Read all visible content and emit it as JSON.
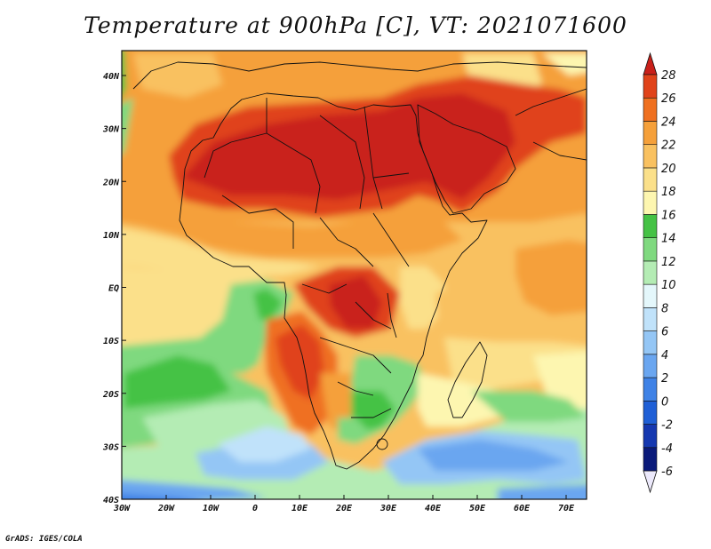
{
  "title": "Temperature at 900hPa [C], VT: 2021071600",
  "footer": "GrADS: IGES/COLA",
  "map": {
    "lon_range": [
      -30,
      75
    ],
    "lat_range": [
      -40,
      45
    ],
    "lon_ticks": [
      "30W",
      "20W",
      "10W",
      "0",
      "10E",
      "20E",
      "30E",
      "40E",
      "50E",
      "60E",
      "70E"
    ],
    "lat_ticks": [
      "40S",
      "30S",
      "20S",
      "10S",
      "EQ",
      "10N",
      "20N",
      "30N",
      "40N"
    ]
  },
  "colorbar": {
    "labels": [
      "-6",
      "-4",
      "-2",
      "0",
      "2",
      "4",
      "6",
      "8",
      "10",
      "12",
      "14",
      "16",
      "18",
      "20",
      "22",
      "24",
      "26",
      "28"
    ],
    "colors": [
      "#0a1a7a",
      "#1538b0",
      "#1f5fd6",
      "#3f82e6",
      "#6aa6f0",
      "#94c6f5",
      "#c0e2fa",
      "#e4f7fb",
      "#b4ecb4",
      "#7fd97f",
      "#45c245",
      "#fdf6b0",
      "#fbe08a",
      "#f9c160",
      "#f5a03a",
      "#ef7020",
      "#e0431a",
      "#c9201a"
    ]
  }
}
